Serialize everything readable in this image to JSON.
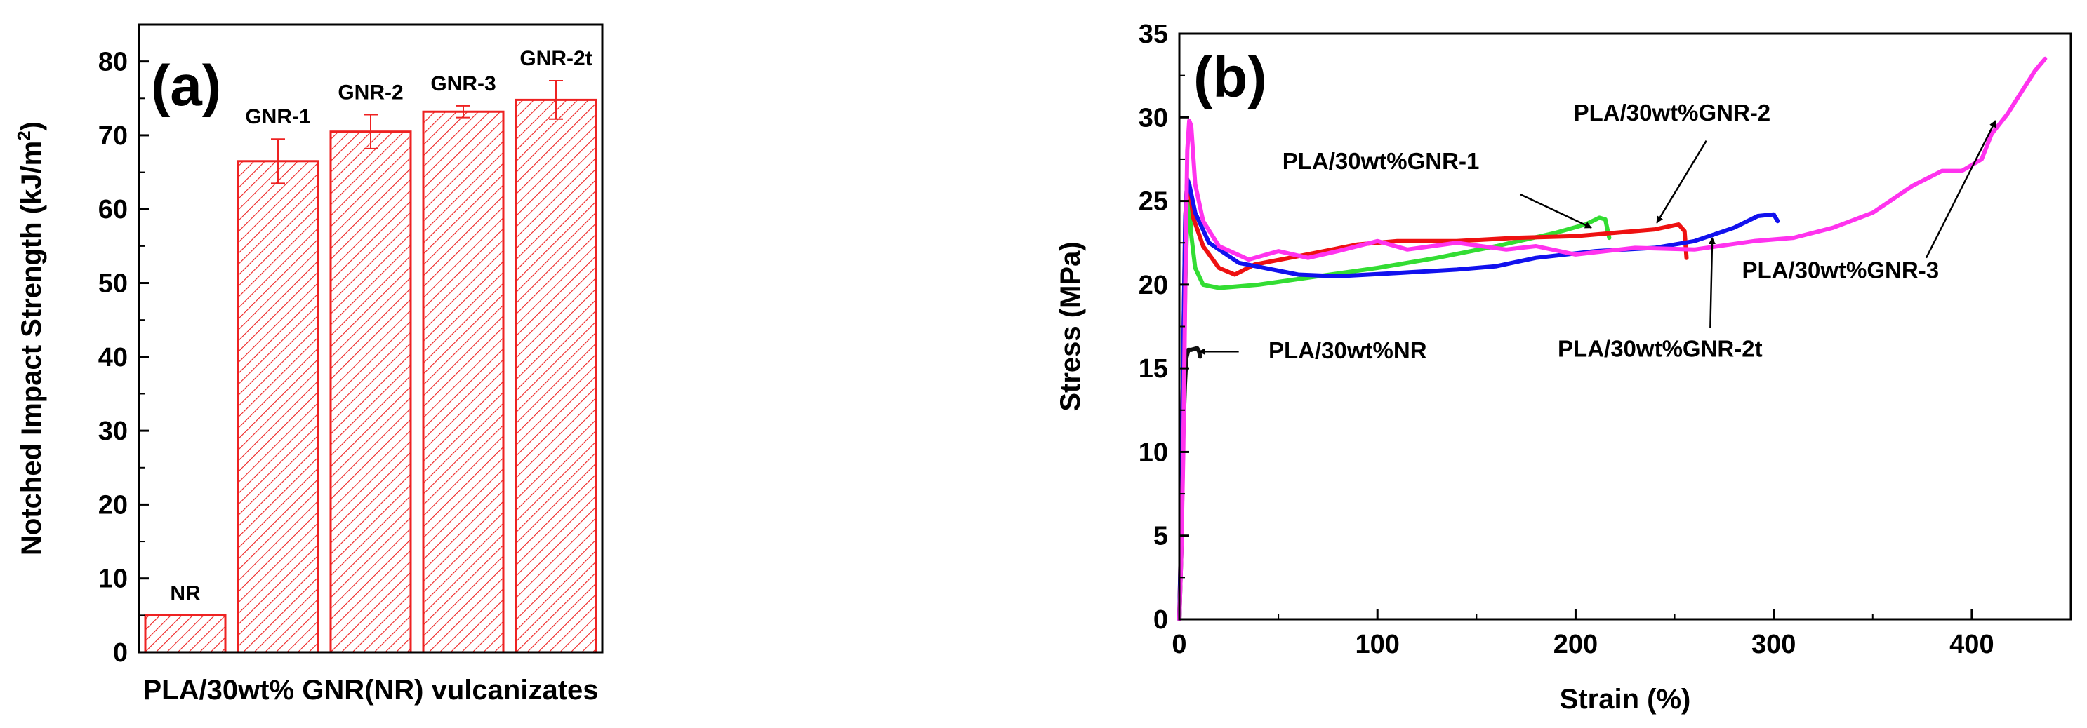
{
  "chart_data": [
    {
      "type": "bar",
      "panel_label": "(a)",
      "title": "",
      "xlabel": "PLA/30wt% GNR(NR) vulcanizates",
      "ylabel": "Notched Impact Strength (kJ/m",
      "ylabel_sup": "2",
      "ylabel_end": ")",
      "ylim": [
        0,
        85
      ],
      "yticks": [
        0,
        10,
        20,
        30,
        40,
        50,
        60,
        70,
        80
      ],
      "ytick_labels": [
        "0",
        "10",
        "20",
        "30",
        "40",
        "50",
        "60",
        "70",
        "80"
      ],
      "categories": [
        "NR",
        "GNR-1",
        "GNR-2",
        "GNR-3",
        "GNR-2t"
      ],
      "values": [
        5,
        66.5,
        70.5,
        73.2,
        74.8
      ],
      "errors": [
        0,
        3,
        2.3,
        0.8,
        2.6
      ],
      "colors": {
        "bar": "#ee2222",
        "error": "#ee2222",
        "axis": "#000000"
      }
    },
    {
      "type": "line",
      "panel_label": "(b)",
      "title": "",
      "xlabel": "Strain (%)",
      "ylabel": "Stress (MPa)",
      "xlim": [
        0,
        450
      ],
      "ylim": [
        0,
        35
      ],
      "xticks": [
        0,
        100,
        200,
        300,
        400
      ],
      "xtick_labels": [
        "0",
        "100",
        "200",
        "300",
        "400"
      ],
      "yticks": [
        0,
        5,
        10,
        15,
        20,
        25,
        30,
        35
      ],
      "ytick_labels": [
        "0",
        "5",
        "10",
        "15",
        "20",
        "25",
        "30",
        "35"
      ],
      "series": [
        {
          "name": "PLA/30wt%NR",
          "color": "#111111",
          "points": [
            [
              0,
              0
            ],
            [
              1,
              4
            ],
            [
              2,
              11
            ],
            [
              2.8,
              14
            ],
            [
              3.5,
              15.6
            ],
            [
              4.5,
              16.1
            ],
            [
              6,
              16.1
            ],
            [
              9,
              16.2
            ],
            [
              10,
              16.0
            ],
            [
              10.5,
              15.7
            ]
          ]
        },
        {
          "name": "PLA/30wt%GNR-1",
          "color": "#33dd33",
          "points": [
            [
              0,
              0
            ],
            [
              1,
              5
            ],
            [
              2,
              13
            ],
            [
              3,
              20
            ],
            [
              4,
              24
            ],
            [
              5,
              25
            ],
            [
              6,
              23
            ],
            [
              8,
              21
            ],
            [
              12,
              20
            ],
            [
              20,
              19.8
            ],
            [
              40,
              20
            ],
            [
              70,
              20.5
            ],
            [
              100,
              21
            ],
            [
              130,
              21.6
            ],
            [
              160,
              22.3
            ],
            [
              190,
              23.1
            ],
            [
              205,
              23.6
            ],
            [
              212,
              24
            ],
            [
              215,
              23.9
            ],
            [
              217,
              22.8
            ]
          ]
        },
        {
          "name": "PLA/30wt%GNR-2",
          "color": "#ee1111",
          "points": [
            [
              0,
              0
            ],
            [
              1,
              6
            ],
            [
              2,
              16
            ],
            [
              3,
              24
            ],
            [
              4,
              26.3
            ],
            [
              5,
              26
            ],
            [
              7,
              24
            ],
            [
              12,
              22.3
            ],
            [
              20,
              21
            ],
            [
              28,
              20.6
            ],
            [
              38,
              21.2
            ],
            [
              60,
              21.7
            ],
            [
              90,
              22.4
            ],
            [
              110,
              22.6
            ],
            [
              140,
              22.6
            ],
            [
              170,
              22.8
            ],
            [
              200,
              22.9
            ],
            [
              220,
              23.1
            ],
            [
              240,
              23.3
            ],
            [
              252,
              23.6
            ],
            [
              255,
              23.2
            ],
            [
              256,
              21.6
            ]
          ]
        },
        {
          "name": "PLA/30wt%GNR-2t",
          "color": "#1111ee",
          "points": [
            [
              0,
              0
            ],
            [
              1,
              6
            ],
            [
              2,
              16
            ],
            [
              3,
              24
            ],
            [
              4,
              26.3
            ],
            [
              5,
              26
            ],
            [
              8,
              24.3
            ],
            [
              15,
              22.5
            ],
            [
              30,
              21.3
            ],
            [
              60,
              20.6
            ],
            [
              80,
              20.5
            ],
            [
              110,
              20.7
            ],
            [
              140,
              20.9
            ],
            [
              160,
              21.1
            ],
            [
              180,
              21.6
            ],
            [
              210,
              22
            ],
            [
              240,
              22.2
            ],
            [
              260,
              22.6
            ],
            [
              280,
              23.4
            ],
            [
              292,
              24.1
            ],
            [
              300,
              24.2
            ],
            [
              302,
              23.8
            ]
          ]
        },
        {
          "name": "PLA/30wt%GNR-3",
          "color": "#ff33ee",
          "points": [
            [
              0,
              0
            ],
            [
              1,
              4
            ],
            [
              2,
              10
            ],
            [
              3,
              20
            ],
            [
              4,
              28
            ],
            [
              5,
              29.8
            ],
            [
              6,
              29.5
            ],
            [
              8,
              26
            ],
            [
              12,
              23.8
            ],
            [
              20,
              22.3
            ],
            [
              35,
              21.5
            ],
            [
              50,
              22
            ],
            [
              65,
              21.6
            ],
            [
              80,
              22
            ],
            [
              100,
              22.6
            ],
            [
              115,
              22.1
            ],
            [
              140,
              22.5
            ],
            [
              165,
              22.1
            ],
            [
              180,
              22.3
            ],
            [
              200,
              21.8
            ],
            [
              230,
              22.2
            ],
            [
              260,
              22.1
            ],
            [
              290,
              22.6
            ],
            [
              310,
              22.8
            ],
            [
              330,
              23.4
            ],
            [
              350,
              24.3
            ],
            [
              370,
              25.9
            ],
            [
              385,
              26.8
            ],
            [
              395,
              26.8
            ],
            [
              405,
              27.5
            ],
            [
              410,
              29
            ],
            [
              418,
              30.2
            ],
            [
              425,
              31.5
            ],
            [
              432,
              32.8
            ],
            [
              437,
              33.5
            ]
          ]
        }
      ],
      "annotations": [
        {
          "text": "PLA/30wt%NR",
          "target": [
            10,
            16
          ],
          "label_at": [
            45,
            15.6
          ],
          "anchor": "start",
          "arrow_from": [
            30,
            16
          ]
        },
        {
          "text": "PLA/30wt%GNR-1",
          "target": [
            208,
            23.4
          ],
          "label_at": [
            52,
            26.9
          ],
          "anchor": "start",
          "arrow_from": [
            172,
            25.4
          ]
        },
        {
          "text": "PLA/30wt%GNR-2",
          "target": [
            241,
            23.7
          ],
          "label_at": [
            199,
            29.8
          ],
          "anchor": "start",
          "arrow_from": [
            266,
            28.6
          ]
        },
        {
          "text": "PLA/30wt%GNR-2t",
          "target": [
            269,
            22.8
          ],
          "label_at": [
            191,
            15.7
          ],
          "anchor": "start",
          "arrow_from": [
            268,
            17.4
          ]
        },
        {
          "text": "PLA/30wt%GNR-3",
          "target": [
            412,
            29.8
          ],
          "label_at": [
            284,
            20.4
          ],
          "anchor": "start",
          "arrow_from": [
            377,
            21.6
          ]
        }
      ]
    }
  ]
}
